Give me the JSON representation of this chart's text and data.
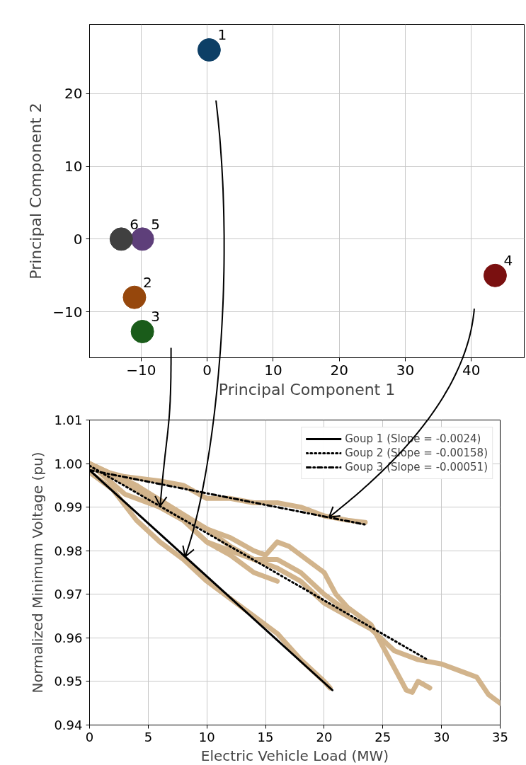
{
  "chart_data": [
    {
      "type": "scatter",
      "xlabel": "Principal Component 1",
      "ylabel": "Principal Component 2",
      "x": [
        0.3,
        -11,
        -9.8,
        43.6,
        -9.8,
        -13
      ],
      "values": [
        26,
        -8,
        -12.7,
        -5,
        0,
        0
      ],
      "colors": [
        "#0d3f66",
        "#96470c",
        "#1a5c1a",
        "#7a1010",
        "#5e3f7a",
        "#404040"
      ],
      "annotations": [
        {
          "text": "1",
          "x": 0.3,
          "y": 26
        },
        {
          "text": "2",
          "x": -11,
          "y": -8
        },
        {
          "text": "3",
          "x": -9.8,
          "y": -12.7
        },
        {
          "text": "4",
          "x": 43.6,
          "y": -5
        },
        {
          "text": "5",
          "x": -9.8,
          "y": 0
        },
        {
          "text": "6",
          "x": -13,
          "y": 0
        }
      ],
      "xlim": [
        -17.8,
        48
      ],
      "ylim": [
        -16.3,
        29.5
      ],
      "xticks": [
        -10,
        0,
        10,
        20,
        30,
        40
      ],
      "yticks": [
        -10,
        0,
        10,
        20
      ],
      "grid": true,
      "marker": "circle"
    },
    {
      "type": "line",
      "xlabel": "Electric Vehicle Load (MW)",
      "ylabel": "Normalized Minimum Voltage (pu)",
      "xlim": [
        0,
        35
      ],
      "ylim": [
        0.94,
        1.01
      ],
      "xticks": [
        0,
        5,
        10,
        15,
        20,
        25,
        30,
        35
      ],
      "yticks": [
        {
          "value": 0.94,
          "label": "0.94"
        },
        {
          "value": 0.95,
          "label": "0.95"
        },
        {
          "value": 0.96,
          "label": "0.96"
        },
        {
          "value": 0.97,
          "label": "0.97"
        },
        {
          "value": 0.98,
          "label": "0.98"
        },
        {
          "value": 0.99,
          "label": "0.99"
        },
        {
          "value": 1.0,
          "label": "1.00"
        },
        {
          "value": 1.01,
          "label": "1.01"
        }
      ],
      "grid": true,
      "legend": "top right",
      "series": [
        {
          "color": "#d2b48c",
          "x": [
            0,
            2,
            4,
            6,
            8,
            10,
            12,
            14,
            16,
            18,
            20,
            20.5
          ],
          "values": [
            0.998,
            0.994,
            0.987,
            0.982,
            0.978,
            0.973,
            0.969,
            0.965,
            0.961,
            0.955,
            0.95,
            0.9485
          ]
        },
        {
          "color": "#d2b48c",
          "x": [
            0,
            3,
            6,
            8,
            10,
            12,
            14,
            16,
            18,
            20,
            22,
            23.5
          ],
          "values": [
            0.999,
            0.997,
            0.996,
            0.995,
            0.992,
            0.992,
            0.991,
            0.991,
            0.99,
            0.988,
            0.987,
            0.9865
          ]
        },
        {
          "color": "#d2b48c",
          "x": [
            0,
            3,
            6,
            8,
            10,
            12,
            14,
            16
          ],
          "values": [
            1.0,
            0.993,
            0.99,
            0.987,
            0.982,
            0.979,
            0.975,
            0.973
          ]
        },
        {
          "color": "#d2b48c",
          "x": [
            0,
            4,
            6,
            8,
            10,
            12,
            14,
            15,
            16,
            17,
            19,
            20,
            21,
            22,
            24,
            25,
            26,
            27,
            27.5,
            28,
            29
          ],
          "values": [
            1.0,
            0.995,
            0.991,
            0.988,
            0.985,
            0.983,
            0.98,
            0.979,
            0.982,
            0.981,
            0.977,
            0.975,
            0.97,
            0.967,
            0.963,
            0.958,
            0.953,
            0.948,
            0.9475,
            0.95,
            0.9485
          ]
        },
        {
          "color": "#d2b48c",
          "x": [
            0,
            4,
            6,
            8,
            10,
            12,
            14,
            16,
            18,
            20,
            22,
            24,
            26,
            28,
            30,
            32,
            33,
            34,
            35
          ],
          "values": [
            1.0,
            0.994,
            0.99,
            0.987,
            0.982,
            0.98,
            0.978,
            0.976,
            0.973,
            0.968,
            0.965,
            0.962,
            0.957,
            0.955,
            0.954,
            0.952,
            0.951,
            0.947,
            0.945
          ]
        },
        {
          "color": "#d2b48c",
          "x": [
            0,
            4,
            7,
            10,
            12,
            14,
            16,
            18,
            20,
            22
          ],
          "values": [
            1.0,
            0.995,
            0.99,
            0.985,
            0.981,
            0.978,
            0.978,
            0.975,
            0.97,
            0.966
          ]
        },
        {
          "name": "Goup 1 (Slope = -0.0024)",
          "color": "#000000",
          "line_style": "solid",
          "x": [
            0,
            20.7
          ],
          "values": [
            0.9985,
            0.948
          ]
        },
        {
          "name": "Goup 2 (Slope = -0.00158)",
          "color": "#000000",
          "line_style": "dotted",
          "x": [
            0,
            28.8
          ],
          "values": [
            0.9995,
            0.955
          ]
        },
        {
          "name": "Goup 3 (Slope = -0.00051)",
          "color": "#000000",
          "line_style": "dashdot",
          "x": [
            0,
            23.5
          ],
          "values": [
            0.9985,
            0.986
          ]
        }
      ]
    }
  ]
}
